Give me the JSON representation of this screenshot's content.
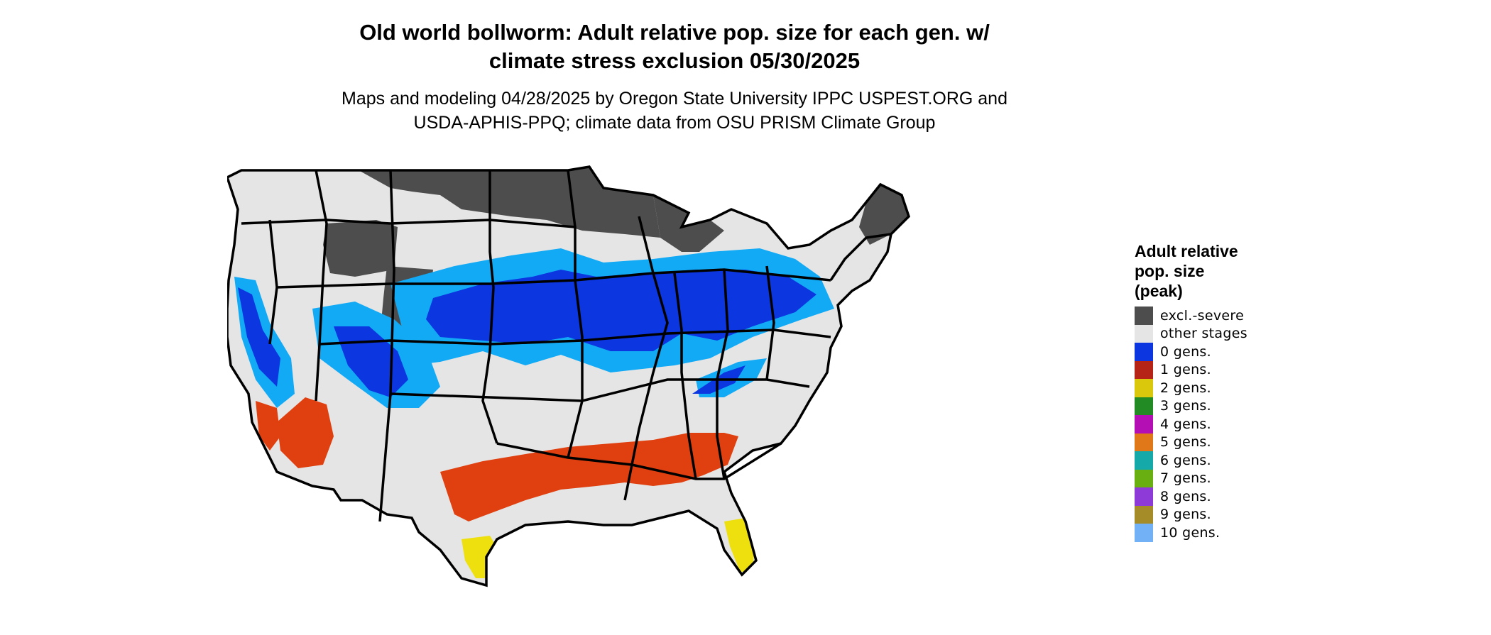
{
  "title": {
    "line1": "Old world bollworm: Adult relative pop. size for each gen. w/",
    "line2": "climate stress exclusion 05/30/2025"
  },
  "subtitle": {
    "line1": "Maps and modeling 04/28/2025 by Oregon State University IPPC USPEST.ORG and",
    "line2": "USDA-APHIS-PPQ; climate data from OSU PRISM Climate Group"
  },
  "legend": {
    "title_lines": [
      "Adult relative",
      "pop. size",
      "(peak)"
    ],
    "items": [
      {
        "label": "excl.-severe",
        "color": "#4d4d4d"
      },
      {
        "label": "other stages",
        "color": "#e5e5e5"
      },
      {
        "label": "0 gens.",
        "color": "#0b36e0"
      },
      {
        "label": "1 gens.",
        "color": "#b52417"
      },
      {
        "label": "2 gens.",
        "color": "#d9c80b"
      },
      {
        "label": "3 gens.",
        "color": "#238b23"
      },
      {
        "label": "4 gens.",
        "color": "#b40fb4"
      },
      {
        "label": "5 gens.",
        "color": "#e0781a"
      },
      {
        "label": "6 gens.",
        "color": "#15a9a9"
      },
      {
        "label": "7 gens.",
        "color": "#6aaf12"
      },
      {
        "label": "8 gens.",
        "color": "#8d3ad8"
      },
      {
        "label": "9 gens.",
        "color": "#a68c28"
      },
      {
        "label": "10 gens.",
        "color": "#72b1f5"
      }
    ]
  },
  "map_colors": {
    "land": "#e5e5e5",
    "excluded": "#4d4d4d",
    "light_blue": "#13aaf5",
    "dark_blue": "#0b36e0",
    "red_orange": "#e0400f",
    "yellow": "#eee00f",
    "border": "#000000"
  }
}
